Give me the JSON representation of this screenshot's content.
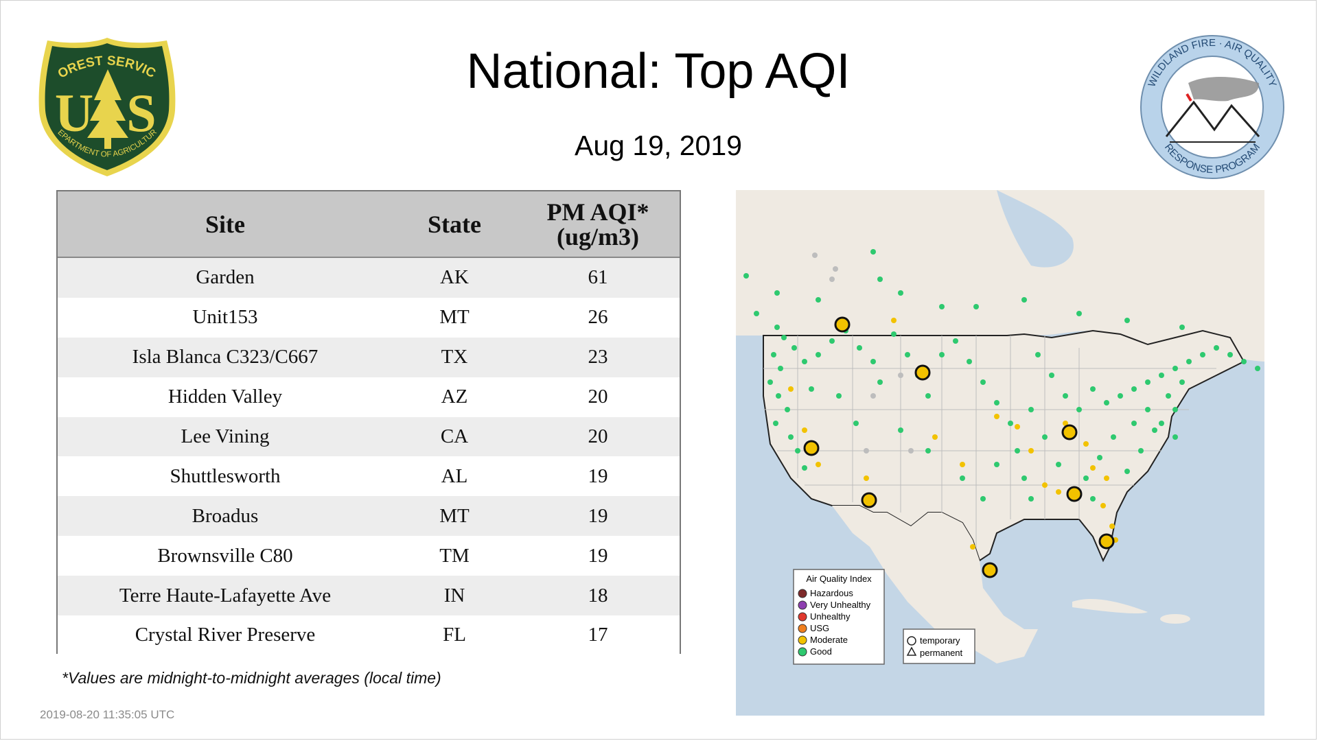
{
  "title": "National: Top AQI",
  "date": "Aug 19, 2019",
  "logos": {
    "left_lines": [
      "FOREST SERVICE",
      "DEPARTMENT OF AGRICULTURE",
      "U",
      "S"
    ],
    "right_lines": [
      "WILDLAND FIRE · AIR QUALITY",
      "RESPONSE PROGRAM"
    ]
  },
  "table": {
    "headers": [
      "Site",
      "State",
      "PM AQI*",
      "(ug/m3)"
    ],
    "rows": [
      {
        "site": "Garden",
        "state": "AK",
        "aqi": "61"
      },
      {
        "site": "Unit153",
        "state": "MT",
        "aqi": "26"
      },
      {
        "site": "Isla Blanca C323/C667",
        "state": "TX",
        "aqi": "23"
      },
      {
        "site": "Hidden Valley",
        "state": "AZ",
        "aqi": "20"
      },
      {
        "site": "Lee Vining",
        "state": "CA",
        "aqi": "20"
      },
      {
        "site": "Shuttlesworth",
        "state": "AL",
        "aqi": "19"
      },
      {
        "site": "Broadus",
        "state": "MT",
        "aqi": "19"
      },
      {
        "site": "Brownsville C80",
        "state": "TM",
        "aqi": "19"
      },
      {
        "site": "Terre Haute-Lafayette Ave",
        "state": "IN",
        "aqi": "18"
      },
      {
        "site": "Crystal River Preserve",
        "state": "FL",
        "aqi": "17"
      }
    ]
  },
  "footnote": "*Values are midnight-to-midnight averages (local time)",
  "timestamp": "2019-08-20 11:35:05 UTC",
  "map": {
    "legend_title": "Air Quality Index",
    "legend_items": [
      {
        "label": "Hazardous",
        "color": "#7e2a2a"
      },
      {
        "label": "Very Unhealthy",
        "color": "#8e3fb0"
      },
      {
        "label": "Unhealthy",
        "color": "#e0392e"
      },
      {
        "label": "USG",
        "color": "#f07f1e"
      },
      {
        "label": "Moderate",
        "color": "#f2c200"
      },
      {
        "label": "Good",
        "color": "#2ec96f"
      }
    ],
    "shape_legend": [
      "temporary",
      "permanent"
    ]
  },
  "colors": {
    "header_bg": "#c8c8c8",
    "row_alt": "#ededed",
    "good": "#2ec96f",
    "moderate": "#f2c200",
    "nodata": "#bdbdbd",
    "forest_green": "#1d4d2b",
    "forest_yellow": "#e8d44d",
    "program_blue": "#b9d3ea"
  }
}
